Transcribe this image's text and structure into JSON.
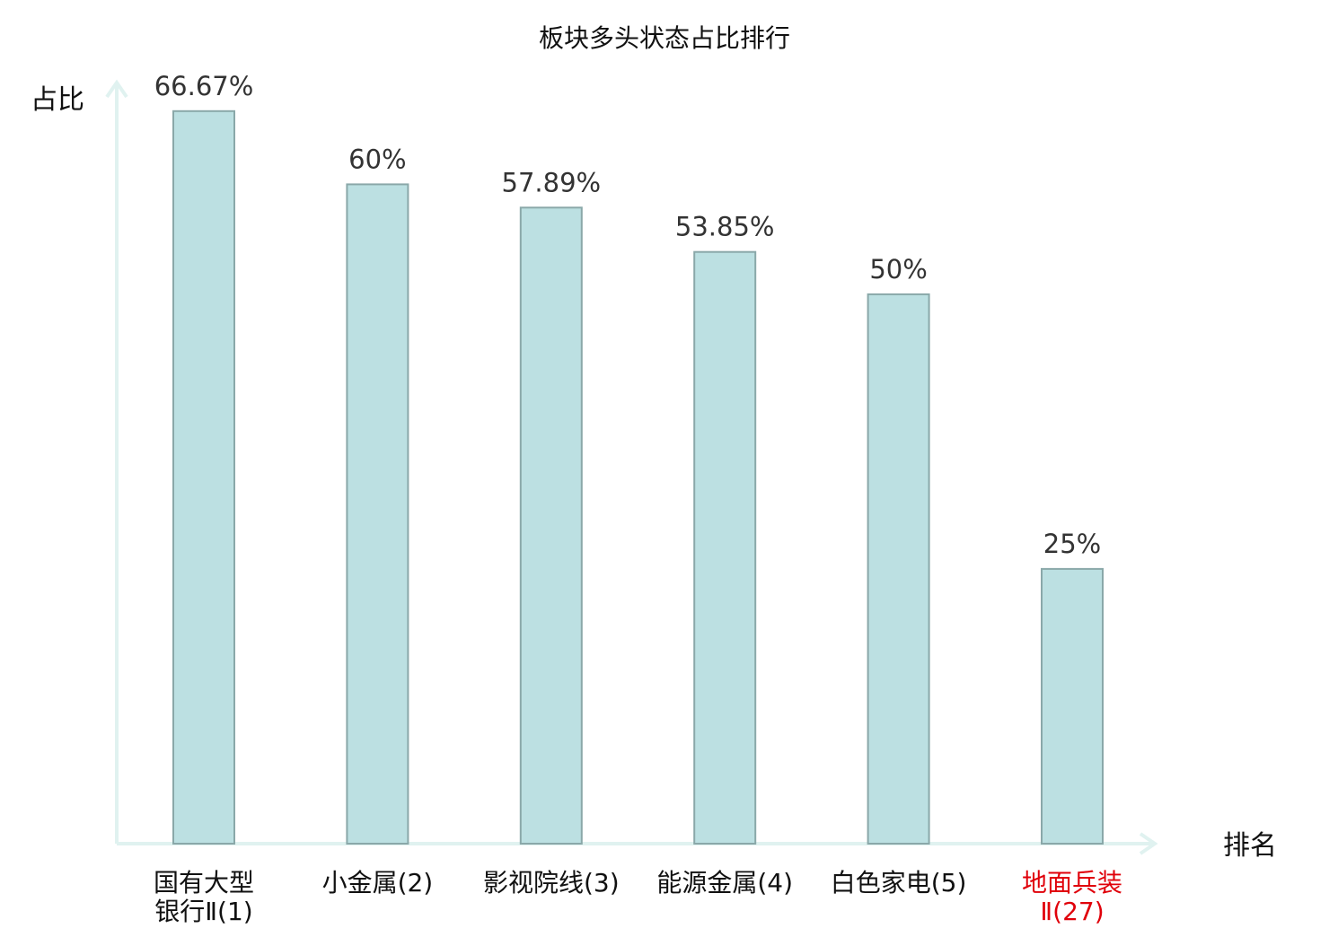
{
  "chart_data": {
    "type": "bar",
    "title": "板块多头状态占比排行",
    "xlabel": "排名",
    "ylabel": "占比",
    "ylim": [
      0,
      70
    ],
    "grid": false,
    "legend": "none",
    "categories": [
      {
        "lines": [
          "国有大型",
          "银行Ⅱ(1)"
        ],
        "highlight": false
      },
      {
        "lines": [
          "小金属(2)"
        ],
        "highlight": false
      },
      {
        "lines": [
          "影视院线(3)"
        ],
        "highlight": false
      },
      {
        "lines": [
          "能源金属(4)"
        ],
        "highlight": false
      },
      {
        "lines": [
          "白色家电(5)"
        ],
        "highlight": false
      },
      {
        "lines": [
          "地面兵装",
          "Ⅱ(27)"
        ],
        "highlight": true
      }
    ],
    "values": [
      66.67,
      60,
      57.89,
      53.85,
      50,
      25
    ],
    "value_labels": [
      "66.67%",
      "60%",
      "57.89%",
      "53.85%",
      "50%",
      "25%"
    ],
    "colors": {
      "bar_fill": "#bce0e2",
      "bar_stroke": "#8aa8a9",
      "axis": "#e0f2f0",
      "label_normal": "#111111",
      "label_highlight": "#e0000a",
      "value_text": "#333333"
    }
  }
}
